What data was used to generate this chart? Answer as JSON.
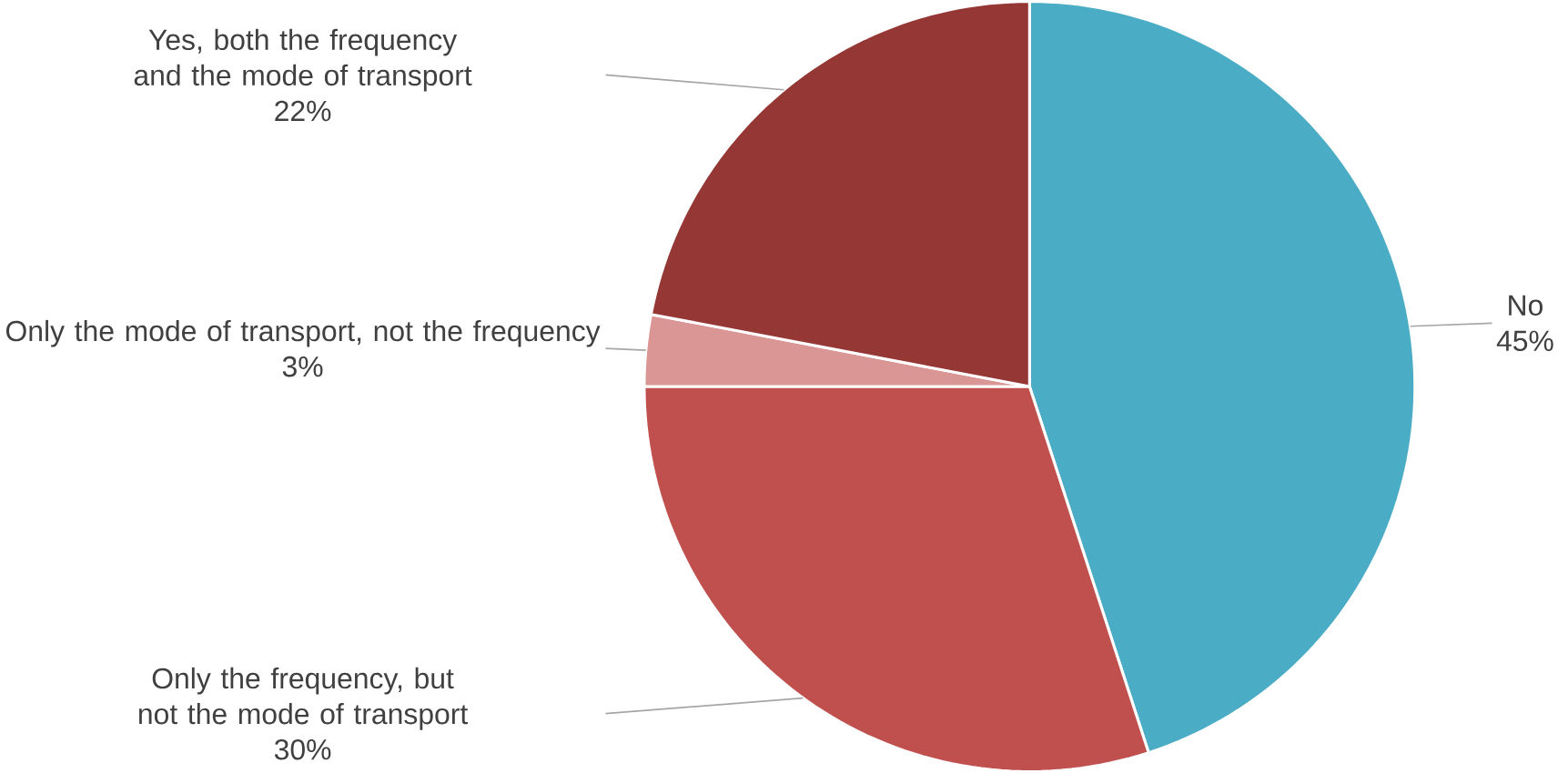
{
  "chart_data": {
    "type": "pie",
    "categories": [
      "No",
      "Only the frequency, but not the mode of transport",
      "Only the mode of transport, not the frequency",
      "Yes, both the frequency and the mode of transport"
    ],
    "values": [
      45,
      30,
      3,
      22
    ],
    "value_labels": [
      "45%",
      "30%",
      "3%",
      "22%"
    ],
    "colors": [
      "#4bacc6",
      "#c0504d",
      "#d99694",
      "#953735"
    ]
  }
}
